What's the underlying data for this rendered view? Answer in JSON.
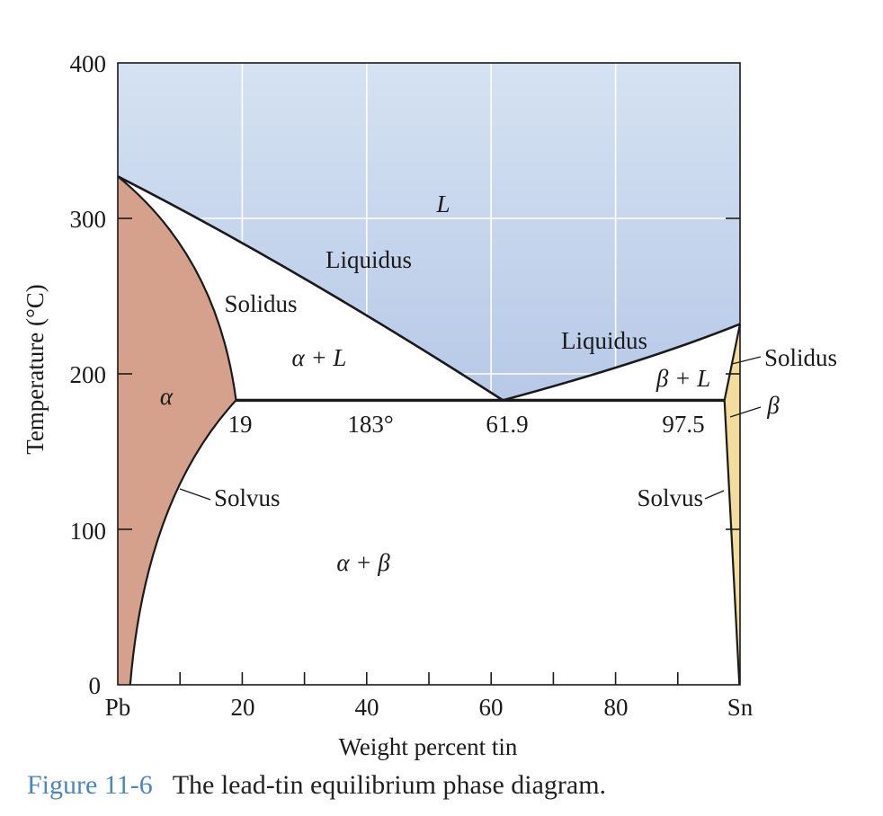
{
  "diagram": {
    "x_axis": {
      "title": "Weight percent tin",
      "ticks": [
        {
          "value": 0,
          "label": "Pb"
        },
        {
          "value": 20,
          "label": "20"
        },
        {
          "value": 40,
          "label": "40"
        },
        {
          "value": 60,
          "label": "60"
        },
        {
          "value": 80,
          "label": "80"
        },
        {
          "value": 100,
          "label": "Sn"
        }
      ],
      "range": [
        0,
        100
      ]
    },
    "y_axis": {
      "title": "Temperature (°C)",
      "ticks": [
        "0",
        "100",
        "200",
        "300",
        "400"
      ],
      "range": [
        0,
        400
      ]
    },
    "region_labels": {
      "liquid": "L",
      "alpha": "α",
      "alpha_plus_liquid": "α + L",
      "beta_plus_liquid": "β + L",
      "alpha_plus_beta": "α + β",
      "beta": "β"
    },
    "line_labels": {
      "liquidus_left": "Liquidus",
      "liquidus_right": "Liquidus",
      "solidus_left": "Solidus",
      "solidus_right": "Solidus",
      "solvus_left": "Solvus",
      "solvus_right": "Solvus"
    },
    "eutectic": {
      "temperature_label": "183°",
      "alpha_composition": "19",
      "eutectic_composition": "61.9",
      "beta_composition": "97.5"
    },
    "phase_points": {
      "pb_melting_point": [
        0,
        327
      ],
      "sn_melting_point": [
        100,
        232
      ],
      "eutectic_line": {
        "y": 183,
        "x_from": 19,
        "x_to": 97.5
      },
      "eutectic_point": [
        61.9,
        183
      ],
      "alpha_solvus_at_0": 2,
      "beta_solvus_at_0": 99.9
    },
    "colors": {
      "liquid_top": "#d5e2f2",
      "liquid_bottom": "#b7c9e7",
      "alpha_region": "#d5a08c",
      "beta_region": "#f2dd9c",
      "grid": "#ffffff",
      "lines": "#1a1a1a"
    }
  },
  "caption": {
    "figure_number": "Figure 11-6",
    "text": "The lead-tin equilibrium phase diagram."
  }
}
